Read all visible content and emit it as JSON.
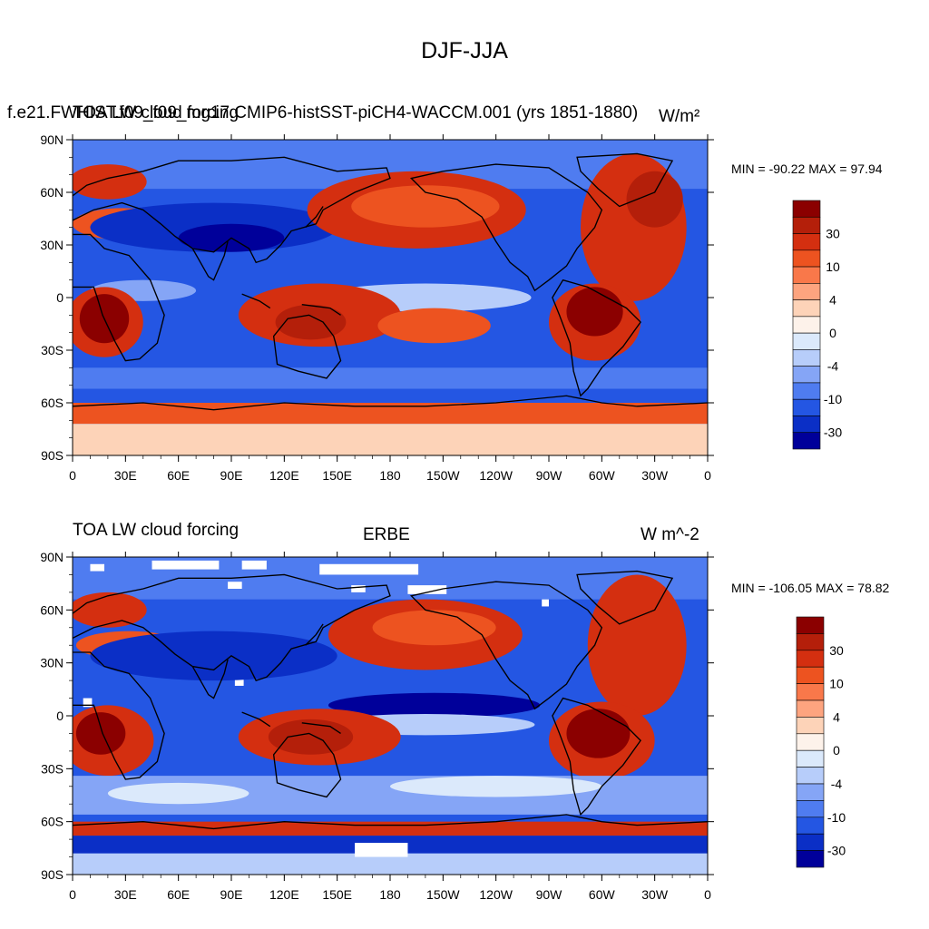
{
  "figure": {
    "title": "DJF-JJA"
  },
  "panels": [
    {
      "left_label": "f.e21.FWHIST.f09_f09_mg17.CMIP6-histSST-piCH4-WACCM.001 (yrs 1851-1880)",
      "left_label_overlap": "TOA LW cloud forcing",
      "center_label": "",
      "right_label": "W/m²",
      "stats": "MIN = -90.22 MAX =  97.94"
    },
    {
      "left_label": "TOA LW cloud forcing",
      "center_label": "ERBE",
      "right_label": "W m^-2",
      "stats": "MIN = -106.05 MAX =  78.82"
    }
  ],
  "colorbar": {
    "labels": [
      "30",
      "10",
      "4",
      "0",
      "-4",
      "-10",
      "-30"
    ],
    "colors": [
      "#8b0000",
      "#b41f0a",
      "#d42f10",
      "#ed5320",
      "#f9784a",
      "#fda47f",
      "#fdd3b8",
      "#fdf2ea",
      "#dbe9fb",
      "#b7cdfa",
      "#85a5f6",
      "#4f7cf0",
      "#2456e3",
      "#0b2fc6",
      "#00009a"
    ]
  },
  "chart_data": [
    {
      "type": "heatmap",
      "title": "DJF-JJA",
      "map": "global lat-lon filled contour with coastlines",
      "x_ticks": [
        "0",
        "30E",
        "60E",
        "90E",
        "120E",
        "150E",
        "180",
        "150W",
        "120W",
        "90W",
        "60W",
        "30W",
        "0"
      ],
      "y_ticks": [
        "90N",
        "60N",
        "30N",
        "0",
        "30S",
        "60S",
        "90S"
      ],
      "xlim": [
        0,
        360
      ],
      "ylim": [
        -90,
        90
      ],
      "min": -90.22,
      "max": 97.94,
      "units": "W/m²",
      "contour_levels": [
        -40,
        -30,
        -20,
        -10,
        -6,
        -4,
        -2,
        0,
        2,
        4,
        6,
        10,
        20,
        30,
        40
      ],
      "colorbar_labels": [
        "30",
        "10",
        "4",
        "0",
        "-4",
        "-10",
        "-30"
      ]
    },
    {
      "type": "heatmap",
      "title": "ERBE",
      "map": "global lat-lon filled contour with coastlines",
      "x_ticks": [
        "0",
        "30E",
        "60E",
        "90E",
        "120E",
        "150E",
        "180",
        "150W",
        "120W",
        "90W",
        "60W",
        "30W",
        "0"
      ],
      "y_ticks": [
        "90N",
        "60N",
        "30N",
        "0",
        "30S",
        "60S",
        "90S"
      ],
      "xlim": [
        0,
        360
      ],
      "ylim": [
        -90,
        90
      ],
      "min": -106.05,
      "max": 78.82,
      "units": "W m^-2",
      "contour_levels": [
        -40,
        -30,
        -20,
        -10,
        -6,
        -4,
        -2,
        0,
        2,
        4,
        6,
        10,
        20,
        30,
        40
      ],
      "colorbar_labels": [
        "30",
        "10",
        "4",
        "0",
        "-4",
        "-10",
        "-30"
      ]
    }
  ]
}
